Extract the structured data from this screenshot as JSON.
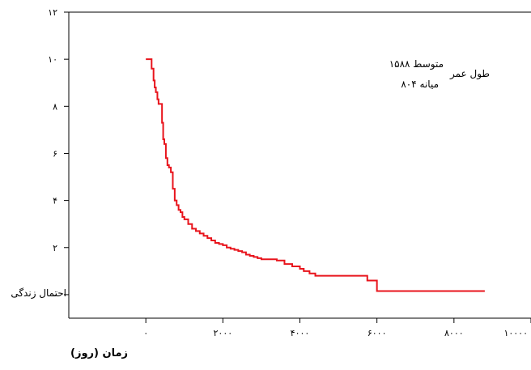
{
  "chart_data": {
    "type": "line",
    "title": "",
    "xlabel": "زمان (روز)",
    "ylabel": "احتمال زندگی",
    "xlim": [
      -2000,
      10000
    ],
    "ylim": [
      -1,
      12
    ],
    "x_ticks": [
      0,
      2000,
      4000,
      6000,
      8000,
      10000
    ],
    "x_tick_labels": [
      "۰",
      "۲۰۰۰",
      "۴۰۰۰",
      "۶۰۰۰",
      "۸۰۰۰",
      "۱۰۰۰۰"
    ],
    "y_ticks": [
      0,
      2,
      4,
      6,
      8,
      10,
      12
    ],
    "y_tick_labels": [
      "۰",
      "۲",
      "۴",
      "۶",
      "۸",
      "۱۰",
      "۱۲"
    ],
    "grid": false,
    "line_color": "#e8141c",
    "annotation": {
      "title": "طول عمر",
      "line1": "متوسط ۱۵۸۸",
      "line2": "میانه ۸۰۴"
    },
    "series": [
      {
        "x": [
          0,
          150,
          150,
          200,
          230,
          260,
          300,
          330,
          380,
          420,
          450,
          480,
          520,
          560,
          600,
          650,
          700,
          750,
          800,
          850,
          900,
          950,
          1000,
          1100,
          1200,
          1300,
          1400,
          1500,
          1600,
          1700,
          1800,
          1900,
          2000,
          2100,
          2200,
          2300,
          2400,
          2500,
          2600,
          2700,
          2800,
          2900,
          3000,
          3100,
          3200,
          3300,
          3400,
          3600,
          3800,
          4000,
          4100,
          4250,
          4400,
          4600,
          4800,
          5000,
          5200,
          5400,
          5600,
          5750,
          6000,
          6000,
          6200,
          6400,
          7000,
          7500,
          8000,
          8500,
          8800
        ],
        "y": [
          10.0,
          10.0,
          9.6,
          9.1,
          8.8,
          8.6,
          8.3,
          8.1,
          8.1,
          7.3,
          6.6,
          6.4,
          5.8,
          5.5,
          5.4,
          5.2,
          4.5,
          4.0,
          3.8,
          3.6,
          3.5,
          3.3,
          3.2,
          3.0,
          2.8,
          2.7,
          2.6,
          2.5,
          2.4,
          2.3,
          2.2,
          2.15,
          2.1,
          2.0,
          1.95,
          1.9,
          1.85,
          1.8,
          1.7,
          1.65,
          1.6,
          1.55,
          1.5,
          1.5,
          1.5,
          1.5,
          1.45,
          1.3,
          1.2,
          1.1,
          1.0,
          0.9,
          0.8,
          0.8,
          0.8,
          0.8,
          0.8,
          0.8,
          0.8,
          0.6,
          0.4,
          0.15,
          0.15,
          0.15,
          0.15,
          0.15,
          0.15,
          0.15,
          0.15
        ]
      }
    ]
  }
}
